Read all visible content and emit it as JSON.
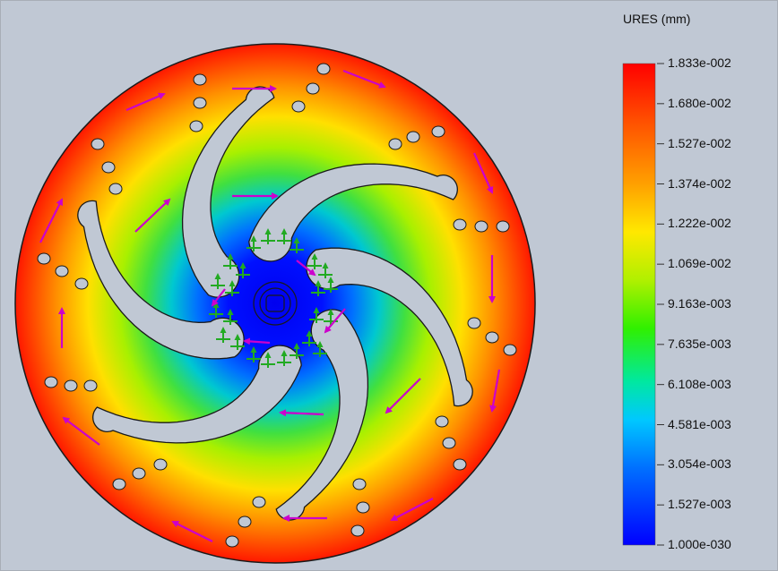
{
  "legend": {
    "title": "URES (mm)",
    "labels": [
      "1.833e-002",
      "1.680e-002",
      "1.527e-002",
      "1.374e-002",
      "1.222e-002",
      "1.069e-002",
      "9.163e-003",
      "7.635e-003",
      "6.108e-003",
      "4.581e-003",
      "3.054e-003",
      "1.527e-003",
      "1.000e-030"
    ],
    "colors_top_to_bottom": [
      "#ff0000",
      "#ff8000",
      "#ffd800",
      "#c8f000",
      "#40f000",
      "#00e8c0",
      "#00a8ff",
      "#0040ff",
      "#0000ff"
    ]
  },
  "colors": {
    "background": "#c0c8d4",
    "disc_outline": "#1a1a1a",
    "hole_fill": "#c0c8d4",
    "load_arrow": "#cc00cc",
    "fixture_marker": "#22aa22"
  },
  "model": {
    "description_icons": [
      "rotational-load-arrow-icon",
      "fixed-support-icon"
    ]
  }
}
